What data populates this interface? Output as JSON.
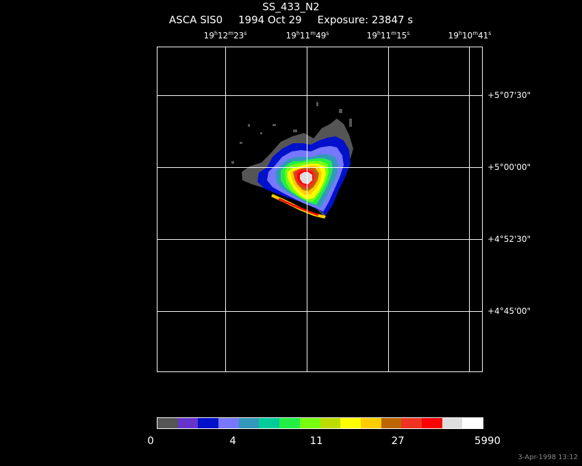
{
  "header": {
    "object_name": "SS_433_N2",
    "instrument": "ASCA SIS0",
    "date": "1994 Oct 29",
    "exposure": "Exposure: 23847 s"
  },
  "ra_labels": [
    {
      "h": "19",
      "m": "12",
      "s": "23"
    },
    {
      "h": "19",
      "m": "11",
      "s": "49"
    },
    {
      "h": "19",
      "m": "11",
      "s": "15"
    },
    {
      "h": "19",
      "m": "10",
      "s": "41"
    }
  ],
  "dec_labels": [
    "+5°07'30\"",
    "+5°00'00\"",
    "+4°52'30\"",
    "+4°45'00\""
  ],
  "colorbar": {
    "colors": [
      "#555555",
      "#6633cc",
      "#0011cc",
      "#7777ff",
      "#3399bb",
      "#00cc99",
      "#22ee44",
      "#77ff11",
      "#bbdd00",
      "#ffff00",
      "#ffcc00",
      "#bb6600",
      "#ee3322",
      "#ff0000",
      "#dddddd",
      "#ffffff"
    ],
    "labels": [
      "0",
      "4",
      "11",
      "27",
      "5990"
    ]
  },
  "timestamp": "3-Apr-1998 13:12"
}
